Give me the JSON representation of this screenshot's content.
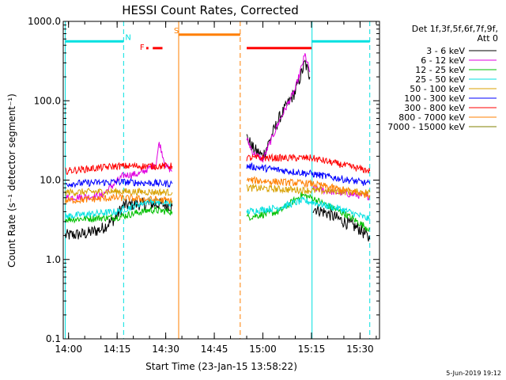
{
  "chart_data": {
    "type": "line",
    "title": "HESSI Count Rates, Corrected",
    "xlabel": "Start Time (23-Jan-15 13:58:22)",
    "ylabel": "Count Rate (s⁻¹ detector segment⁻¹)",
    "yscale": "log",
    "ylim": [
      0.1,
      1000
    ],
    "xlim": [
      "13:58:22",
      "15:36:00"
    ],
    "x_ticks": [
      "14:00",
      "14:15",
      "14:30",
      "14:45",
      "15:00",
      "15:15",
      "15:30"
    ],
    "y_ticks": [
      "0.1",
      "1.0",
      "10.0",
      "100.0",
      "1000.0"
    ],
    "date_stamp": "5-Jun-2019 19:12",
    "legend": {
      "placement": "right, outside",
      "title_line1": "Det 1f,3f,5f,6f,7f,9f,",
      "title_line2": "Att 0"
    },
    "series": [
      {
        "name": "3 - 6 keV",
        "color": "#000000",
        "segments": [
          {
            "x": [
              "13:59",
              "14:05",
              "14:10",
              "14:14",
              "14:17",
              "14:22",
              "14:26",
              "14:30",
              "14:32"
            ],
            "y": [
              2.0,
              2.1,
              2.4,
              3.2,
              4.8,
              5.0,
              5.0,
              4.9,
              4.7
            ]
          },
          {
            "x": [
              "14:55",
              "14:57",
              "15:00",
              "15:05",
              "15:10",
              "15:13",
              "15:14:30"
            ],
            "y": [
              35,
              25,
              20,
              60,
              130,
              300,
              200
            ]
          },
          {
            "x": [
              "15:15:30",
              "15:20",
              "15:25",
              "15:30",
              "15:33"
            ],
            "y": [
              4.5,
              3.8,
              3.0,
              2.4,
              1.8
            ]
          }
        ]
      },
      {
        "name": "6 - 12 keV",
        "color": "#e000e0",
        "segments": [
          {
            "x": [
              "13:59",
              "14:10",
              "14:17",
              "14:22",
              "14:27",
              "14:28",
              "14:30",
              "14:32"
            ],
            "y": [
              6.0,
              6.3,
              11.5,
              12,
              16,
              30,
              15,
              13
            ]
          },
          {
            "x": [
              "14:55",
              "14:57",
              "15:00",
              "15:05",
              "15:10",
              "15:13",
              "15:14:30"
            ],
            "y": [
              33,
              22,
              18,
              55,
              140,
              380,
              230
            ]
          },
          {
            "x": [
              "15:15:30",
              "15:25",
              "15:33"
            ],
            "y": [
              7.8,
              6.8,
              6.2
            ]
          }
        ]
      },
      {
        "name": "12 - 25 keV",
        "color": "#00c000",
        "segments": [
          {
            "x": [
              "13:59",
              "14:15",
              "14:25",
              "14:32"
            ],
            "y": [
              3.2,
              3.4,
              4.2,
              4.0
            ]
          },
          {
            "x": [
              "14:55",
              "15:05",
              "15:12",
              "15:15",
              "15:25",
              "15:33"
            ],
            "y": [
              3.4,
              4.0,
              6.5,
              6.0,
              3.8,
              2.4
            ]
          }
        ]
      },
      {
        "name": "25 - 50 keV",
        "color": "#00e0e0",
        "segments": [
          {
            "x": [
              "13:59",
              "14:15",
              "14:25",
              "14:32"
            ],
            "y": [
              3.5,
              4.0,
              5.5,
              5.0
            ]
          },
          {
            "x": [
              "14:55",
              "15:05",
              "15:12",
              "15:15",
              "15:25",
              "15:33"
            ],
            "y": [
              4.0,
              4.5,
              5.5,
              5.3,
              4.2,
              3.2
            ]
          }
        ]
      },
      {
        "name": "50 - 100 keV",
        "color": "#d8a000",
        "segments": [
          {
            "x": [
              "13:59",
              "14:15",
              "14:32"
            ],
            "y": [
              7.0,
              7.2,
              7.0
            ]
          },
          {
            "x": [
              "14:55",
              "15:15",
              "15:33"
            ],
            "y": [
              8.0,
              7.4,
              7.0
            ]
          }
        ]
      },
      {
        "name": "100 - 300 keV",
        "color": "#0000ff",
        "segments": [
          {
            "x": [
              "13:59",
              "14:15",
              "14:32"
            ],
            "y": [
              9.0,
              9.5,
              9.0
            ]
          },
          {
            "x": [
              "14:55",
              "15:15",
              "15:33"
            ],
            "y": [
              15,
              12,
              9.0
            ]
          }
        ]
      },
      {
        "name": "300 - 800 keV",
        "color": "#ff0000",
        "segments": [
          {
            "x": [
              "13:59",
              "14:15",
              "14:32"
            ],
            "y": [
              13,
              15,
              15
            ]
          },
          {
            "x": [
              "14:55",
              "15:15",
              "15:33"
            ],
            "y": [
              19,
              19,
              13
            ]
          }
        ]
      },
      {
        "name": "800 - 7000 keV",
        "color": "#ff7f00",
        "segments": [
          {
            "x": [
              "13:59",
              "14:15",
              "14:32"
            ],
            "y": [
              5.5,
              6.0,
              5.5
            ]
          },
          {
            "x": [
              "14:55",
              "15:15",
              "15:33"
            ],
            "y": [
              10,
              9.0,
              6.5
            ]
          }
        ]
      },
      {
        "name": "7000 - 15000 keV",
        "color": "#808000",
        "segments": []
      }
    ],
    "vertical_markers": [
      {
        "x": "13:59",
        "color": "#00e0e0",
        "style": "solid"
      },
      {
        "x": "14:17",
        "color": "#00e0e0",
        "style": "dashed"
      },
      {
        "x": "14:34",
        "color": "#ff7f00",
        "style": "solid"
      },
      {
        "x": "14:53",
        "color": "#ff7f00",
        "style": "dashed"
      },
      {
        "x": "15:15:10",
        "color": "#00e0e0",
        "style": "solid"
      },
      {
        "x": "15:33",
        "color": "#00e0e0",
        "style": "dashed"
      }
    ],
    "flag_bars": [
      {
        "label": "",
        "color": "#00e0e0",
        "x1": "13:59",
        "x2": "14:17",
        "y": 560
      },
      {
        "label": "N",
        "color": "#00e0e0",
        "label_x": "14:17:30",
        "label_y": 640
      },
      {
        "label": "F",
        "color": "#ff0000",
        "label_x": "14:22",
        "label_y": 480
      },
      {
        "label": "",
        "color": "#ff0000",
        "x1": "14:24:00",
        "x2": "14:24:40",
        "y": 460
      },
      {
        "label": "",
        "color": "#ff0000",
        "x1": "14:26",
        "x2": "14:29",
        "y": 460
      },
      {
        "label": "S",
        "color": "#ff7f00",
        "label_x": "14:32:30",
        "label_y": 780
      },
      {
        "label": "",
        "color": "#ff7f00",
        "x1": "14:34",
        "x2": "14:53",
        "y": 680
      },
      {
        "label": "",
        "color": "#ff0000",
        "x1": "14:55",
        "x2": "15:15",
        "y": 460
      },
      {
        "label": "",
        "color": "#00e0e0",
        "x1": "15:15",
        "x2": "15:33",
        "y": 560
      }
    ]
  }
}
